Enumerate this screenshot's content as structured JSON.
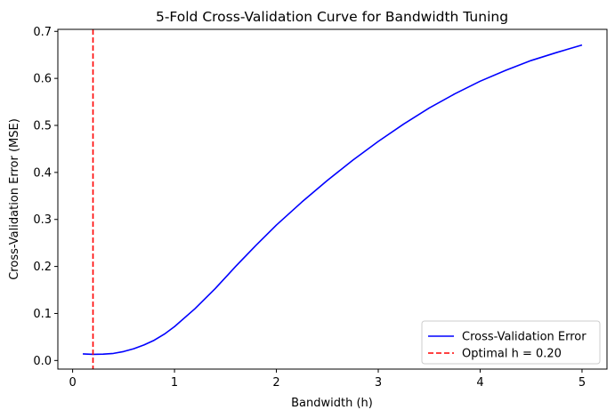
{
  "chart_data": {
    "type": "line",
    "title": "5-Fold Cross-Validation Curve for Bandwidth Tuning",
    "xlabel": "Bandwidth (h)",
    "ylabel": "Cross-Validation Error (MSE)",
    "xlim": [
      -0.145,
      5.245
    ],
    "ylim": [
      -0.0183,
      0.7043
    ],
    "xticks": [
      0,
      1,
      2,
      3,
      4,
      5
    ],
    "yticks": [
      0.0,
      0.1,
      0.2,
      0.3,
      0.4,
      0.5,
      0.6,
      0.7
    ],
    "xtick_labels": [
      "0",
      "1",
      "2",
      "3",
      "4",
      "5"
    ],
    "ytick_labels": [
      "0.0",
      "0.1",
      "0.2",
      "0.3",
      "0.4",
      "0.5",
      "0.6",
      "0.7"
    ],
    "grid": false,
    "legend_position": "lower-right",
    "series": [
      {
        "name": "Cross-Validation Error",
        "color": "#0000ff",
        "style": "solid",
        "x": [
          0.1,
          0.2,
          0.3,
          0.4,
          0.5,
          0.6,
          0.7,
          0.8,
          0.9,
          1.0,
          1.2,
          1.4,
          1.6,
          1.8,
          2.0,
          2.25,
          2.5,
          2.75,
          3.0,
          3.25,
          3.5,
          3.75,
          4.0,
          4.25,
          4.5,
          4.75,
          5.0
        ],
        "y": [
          0.014,
          0.013,
          0.0135,
          0.015,
          0.019,
          0.025,
          0.033,
          0.043,
          0.056,
          0.072,
          0.11,
          0.153,
          0.2,
          0.245,
          0.288,
          0.337,
          0.383,
          0.426,
          0.466,
          0.503,
          0.537,
          0.567,
          0.594,
          0.617,
          0.638,
          0.655,
          0.671
        ]
      },
      {
        "name": "Optimal h = 0.20",
        "color": "#ff0000",
        "style": "dashed",
        "vline_x": 0.2
      }
    ]
  }
}
